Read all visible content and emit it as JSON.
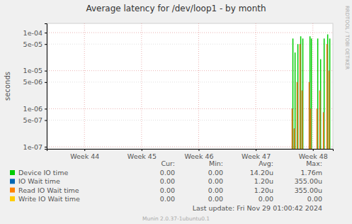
{
  "chart_data": {
    "type": "bar",
    "title": "Average latency for /dev/loop1 - by month",
    "ylabel": "seconds",
    "log": "y",
    "grid": true,
    "legend": "bottom",
    "x": [
      48.138,
      48.15,
      48.175,
      48.188,
      48.225,
      48.237,
      48.275,
      48.287,
      48.312,
      48.324,
      48.436,
      48.449,
      48.461,
      48.474,
      48.573,
      48.585,
      48.622,
      48.635,
      48.685,
      48.697,
      48.747,
      48.759,
      48.784,
      48.796
    ],
    "xlim": [
      43.84,
      48.85
    ],
    "xticks": [
      {
        "value": 44.5,
        "label": "Week 44"
      },
      {
        "value": 45.5,
        "label": "Week 45"
      },
      {
        "value": 46.5,
        "label": "Week 46"
      },
      {
        "value": 47.5,
        "label": "Week 47"
      },
      {
        "value": 48.5,
        "label": "Week 48"
      }
    ],
    "ylim": [
      8.8e-08,
      0.000175
    ],
    "yticks": [
      {
        "value": 1e-07,
        "label": "1e-07"
      },
      {
        "value": 5e-07,
        "label": "5e-07"
      },
      {
        "value": 1e-06,
        "label": "1e-06"
      },
      {
        "value": 5e-06,
        "label": "5e-06"
      },
      {
        "value": 1e-05,
        "label": "1e-05"
      },
      {
        "value": 5e-05,
        "label": "5e-05"
      },
      {
        "value": 0.0001,
        "label": "1e-04"
      }
    ],
    "series": [
      {
        "name": "Device IO time",
        "color": "#00cc00",
        "values": [
          null,
          7e-05,
          null,
          3e-05,
          null,
          5e-05,
          null,
          8e-05,
          null,
          7e-05,
          null,
          8e-05,
          null,
          7e-05,
          null,
          7e-05,
          null,
          2e-05,
          null,
          7e-05,
          null,
          9e-05,
          null,
          7e-05
        ]
      },
      {
        "name": "IO Wait time",
        "color": "#0066b3",
        "values": [
          1e-06,
          null,
          3e-07,
          null,
          5e-06,
          null,
          5e-05,
          null,
          3e-06,
          null,
          5e-06,
          null,
          1e-06,
          null,
          1e-06,
          null,
          3e-06,
          null,
          8e-07,
          null,
          5e-05,
          null,
          1e-05,
          null
        ]
      },
      {
        "name": "Read IO Wait time",
        "color": "#ff8000",
        "values": [
          1e-06,
          null,
          3e-07,
          null,
          5e-06,
          null,
          5e-05,
          null,
          3e-06,
          null,
          5e-06,
          null,
          1e-06,
          null,
          1e-06,
          null,
          3e-06,
          null,
          8e-07,
          null,
          5e-05,
          null,
          1e-05,
          null
        ]
      },
      {
        "name": "Write IO Wait time",
        "color": "#ffcc00",
        "values": [
          null,
          null,
          null,
          null,
          null,
          null,
          null,
          null,
          null,
          null,
          null,
          null,
          null,
          null,
          null,
          null,
          null,
          null,
          null,
          null,
          null,
          null,
          null,
          null
        ]
      }
    ],
    "legend_stats": {
      "headers": [
        "Cur:",
        "Min:",
        "Avg:",
        "Max:"
      ],
      "rows": [
        [
          "0.00",
          "0.00",
          "14.20u",
          "1.76m"
        ],
        [
          "0.00",
          "0.00",
          "1.20u",
          "355.00u"
        ],
        [
          "0.00",
          "0.00",
          "1.20u",
          "355.00u"
        ],
        [
          "0.00",
          "0.00",
          "0.00",
          "0.00"
        ]
      ]
    },
    "footer": "Last update: Fri Nov 29 01:00:42 2024",
    "credit": "Munin 2.0.37-1ubuntu0.1",
    "watermark": "RRDTOOL / TOBI OETIKER"
  }
}
